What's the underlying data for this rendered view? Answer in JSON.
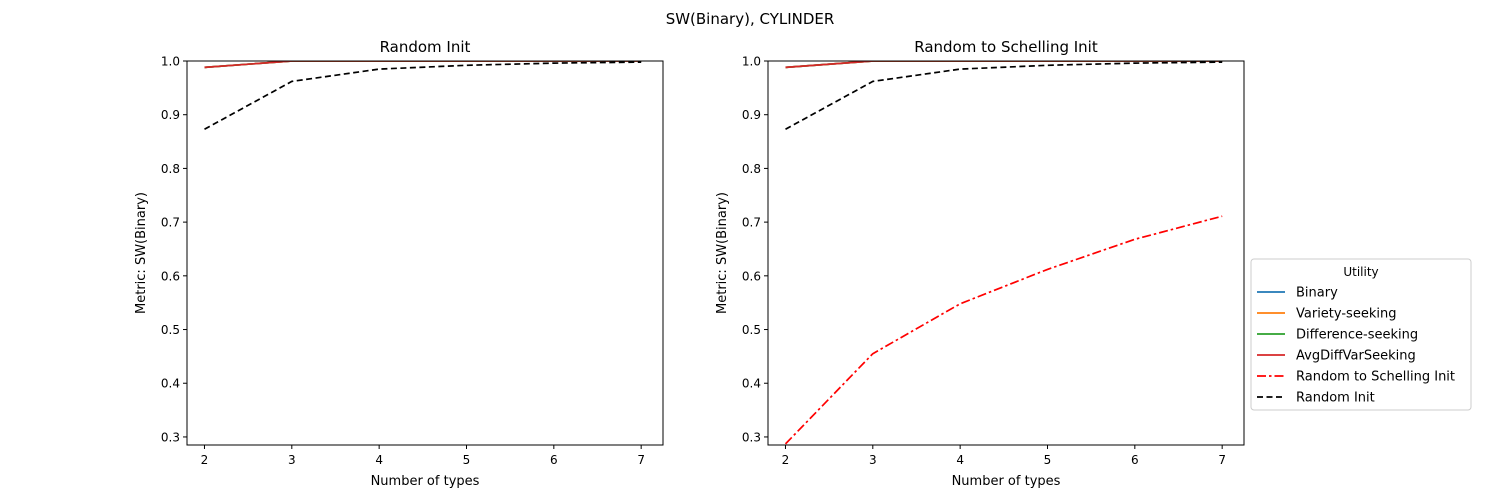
{
  "figure": {
    "suptitle": "SW(Binary), CYLINDER"
  },
  "legend": {
    "title": "Utility",
    "placement": "center-right outside",
    "entries": [
      {
        "label": "Binary",
        "color": "#1f77b4",
        "style": "solid"
      },
      {
        "label": "Variety-seeking",
        "color": "#ff7f0e",
        "style": "solid"
      },
      {
        "label": "Difference-seeking",
        "color": "#2ca02c",
        "style": "solid"
      },
      {
        "label": "AvgDiffVarSeeking",
        "color": "#d62728",
        "style": "solid"
      },
      {
        "label": "Random to Schelling Init",
        "color": "#ff0000",
        "style": "dashdot"
      },
      {
        "label": "Random Init",
        "color": "#000000",
        "style": "dashed"
      }
    ]
  },
  "chart_data": [
    {
      "type": "line",
      "title": "Random Init",
      "xlabel": "Number of types",
      "ylabel": "Metric: SW(Binary)",
      "xlim": [
        1.8,
        7.25
      ],
      "ylim": [
        0.285,
        1.0
      ],
      "xticks": [
        2,
        3,
        4,
        5,
        6,
        7
      ],
      "yticks": [
        0.3,
        0.4,
        0.5,
        0.6,
        0.7,
        0.8,
        0.9,
        1.0
      ],
      "ytick_labels": [
        "0.3",
        "0.4",
        "0.5",
        "0.6",
        "0.7",
        "0.8",
        "0.9",
        "1.0"
      ],
      "grid": false,
      "x": [
        2,
        3,
        4,
        5,
        6,
        7
      ],
      "series": [
        {
          "name": "Binary",
          "color": "#1f77b4",
          "style": "solid",
          "values": [
            0.988,
            1.0,
            1.0,
            1.0,
            1.0,
            1.0
          ]
        },
        {
          "name": "Variety-seeking",
          "color": "#ff7f0e",
          "style": "solid",
          "values": [
            0.988,
            1.0,
            1.0,
            1.0,
            1.0,
            1.0
          ]
        },
        {
          "name": "Difference-seeking",
          "color": "#2ca02c",
          "style": "solid",
          "values": [
            0.988,
            1.0,
            1.0,
            1.0,
            1.0,
            1.0
          ]
        },
        {
          "name": "AvgDiffVarSeeking",
          "color": "#d62728",
          "style": "solid",
          "values": [
            0.988,
            1.0,
            1.0,
            1.0,
            1.0,
            1.0
          ]
        },
        {
          "name": "Random Init",
          "color": "#000000",
          "style": "dashed",
          "values": [
            0.873,
            0.962,
            0.985,
            0.992,
            0.996,
            0.998
          ]
        }
      ]
    },
    {
      "type": "line",
      "title": "Random to Schelling Init",
      "xlabel": "Number of types",
      "ylabel": "Metric: SW(Binary)",
      "xlim": [
        1.8,
        7.25
      ],
      "ylim": [
        0.285,
        1.0
      ],
      "xticks": [
        2,
        3,
        4,
        5,
        6,
        7
      ],
      "yticks": [
        0.3,
        0.4,
        0.5,
        0.6,
        0.7,
        0.8,
        0.9,
        1.0
      ],
      "ytick_labels": [
        "0.3",
        "0.4",
        "0.5",
        "0.6",
        "0.7",
        "0.8",
        "0.9",
        "1.0"
      ],
      "grid": false,
      "x": [
        2,
        3,
        4,
        5,
        6,
        7
      ],
      "series": [
        {
          "name": "Binary",
          "color": "#1f77b4",
          "style": "solid",
          "values": [
            0.988,
            1.0,
            1.0,
            1.0,
            1.0,
            1.0
          ]
        },
        {
          "name": "Variety-seeking",
          "color": "#ff7f0e",
          "style": "solid",
          "values": [
            0.988,
            1.0,
            1.0,
            1.0,
            1.0,
            1.0
          ]
        },
        {
          "name": "Difference-seeking",
          "color": "#2ca02c",
          "style": "solid",
          "values": [
            0.988,
            1.0,
            1.0,
            1.0,
            1.0,
            1.0
          ]
        },
        {
          "name": "AvgDiffVarSeeking",
          "color": "#d62728",
          "style": "solid",
          "values": [
            0.988,
            1.0,
            1.0,
            1.0,
            1.0,
            1.0
          ]
        },
        {
          "name": "Random to Schelling Init",
          "color": "#ff0000",
          "style": "dashdot",
          "values": [
            0.287,
            0.455,
            0.548,
            0.612,
            0.668,
            0.711
          ]
        },
        {
          "name": "Random Init",
          "color": "#000000",
          "style": "dashed",
          "values": [
            0.873,
            0.962,
            0.985,
            0.992,
            0.996,
            0.998
          ]
        }
      ]
    }
  ]
}
